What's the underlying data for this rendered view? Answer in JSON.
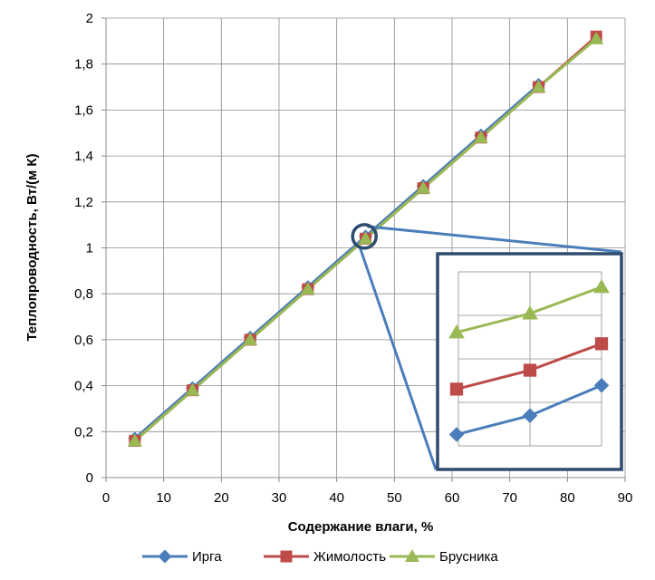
{
  "chart_data": {
    "type": "line",
    "xlabel": "Содержание влаги, %",
    "ylabel": "Теплопроводность, Вт/(м К)",
    "xlim": [
      0,
      90
    ],
    "ylim": [
      0,
      2
    ],
    "x_ticks": [
      "0",
      "10",
      "20",
      "30",
      "40",
      "50",
      "60",
      "70",
      "80",
      "90"
    ],
    "y_ticks": [
      "0",
      "0,2",
      "0,4",
      "0,6",
      "0,8",
      "1",
      "1,2",
      "1,4",
      "1,6",
      "1,8",
      "2"
    ],
    "grid": true,
    "legend_position": "bottom",
    "series": [
      {
        "name": "Ирга",
        "color": "#4a7ebb",
        "marker": "diamond",
        "x": [
          5,
          15,
          25,
          35,
          45,
          55,
          65,
          75
        ],
        "y": [
          0.17,
          0.39,
          0.61,
          0.83,
          1.05,
          1.27,
          1.49,
          1.71
        ]
      },
      {
        "name": "Жимолость",
        "color": "#be4b48",
        "marker": "square",
        "x": [
          5,
          15,
          25,
          35,
          45,
          55,
          65,
          75,
          85
        ],
        "y": [
          0.16,
          0.38,
          0.6,
          0.82,
          1.04,
          1.26,
          1.48,
          1.7,
          1.92
        ]
      },
      {
        "name": "Брусника",
        "color": "#98b954",
        "marker": "triangle",
        "x": [
          5,
          15,
          25,
          35,
          45,
          55,
          65,
          75,
          85
        ],
        "y": [
          0.16,
          0.38,
          0.6,
          0.82,
          1.04,
          1.26,
          1.48,
          1.7,
          1.91
        ]
      }
    ],
    "inset": {
      "description": "zoomed view around x=45",
      "frame_color": "#2f4b6e",
      "series": [
        {
          "name": "Брусника",
          "values": [
            3.0,
            3.5,
            4.2
          ]
        },
        {
          "name": "Жимолость",
          "values": [
            1.5,
            2.0,
            2.7
          ]
        },
        {
          "name": "Ирга",
          "values": [
            0.3,
            0.8,
            1.6
          ]
        }
      ]
    }
  }
}
